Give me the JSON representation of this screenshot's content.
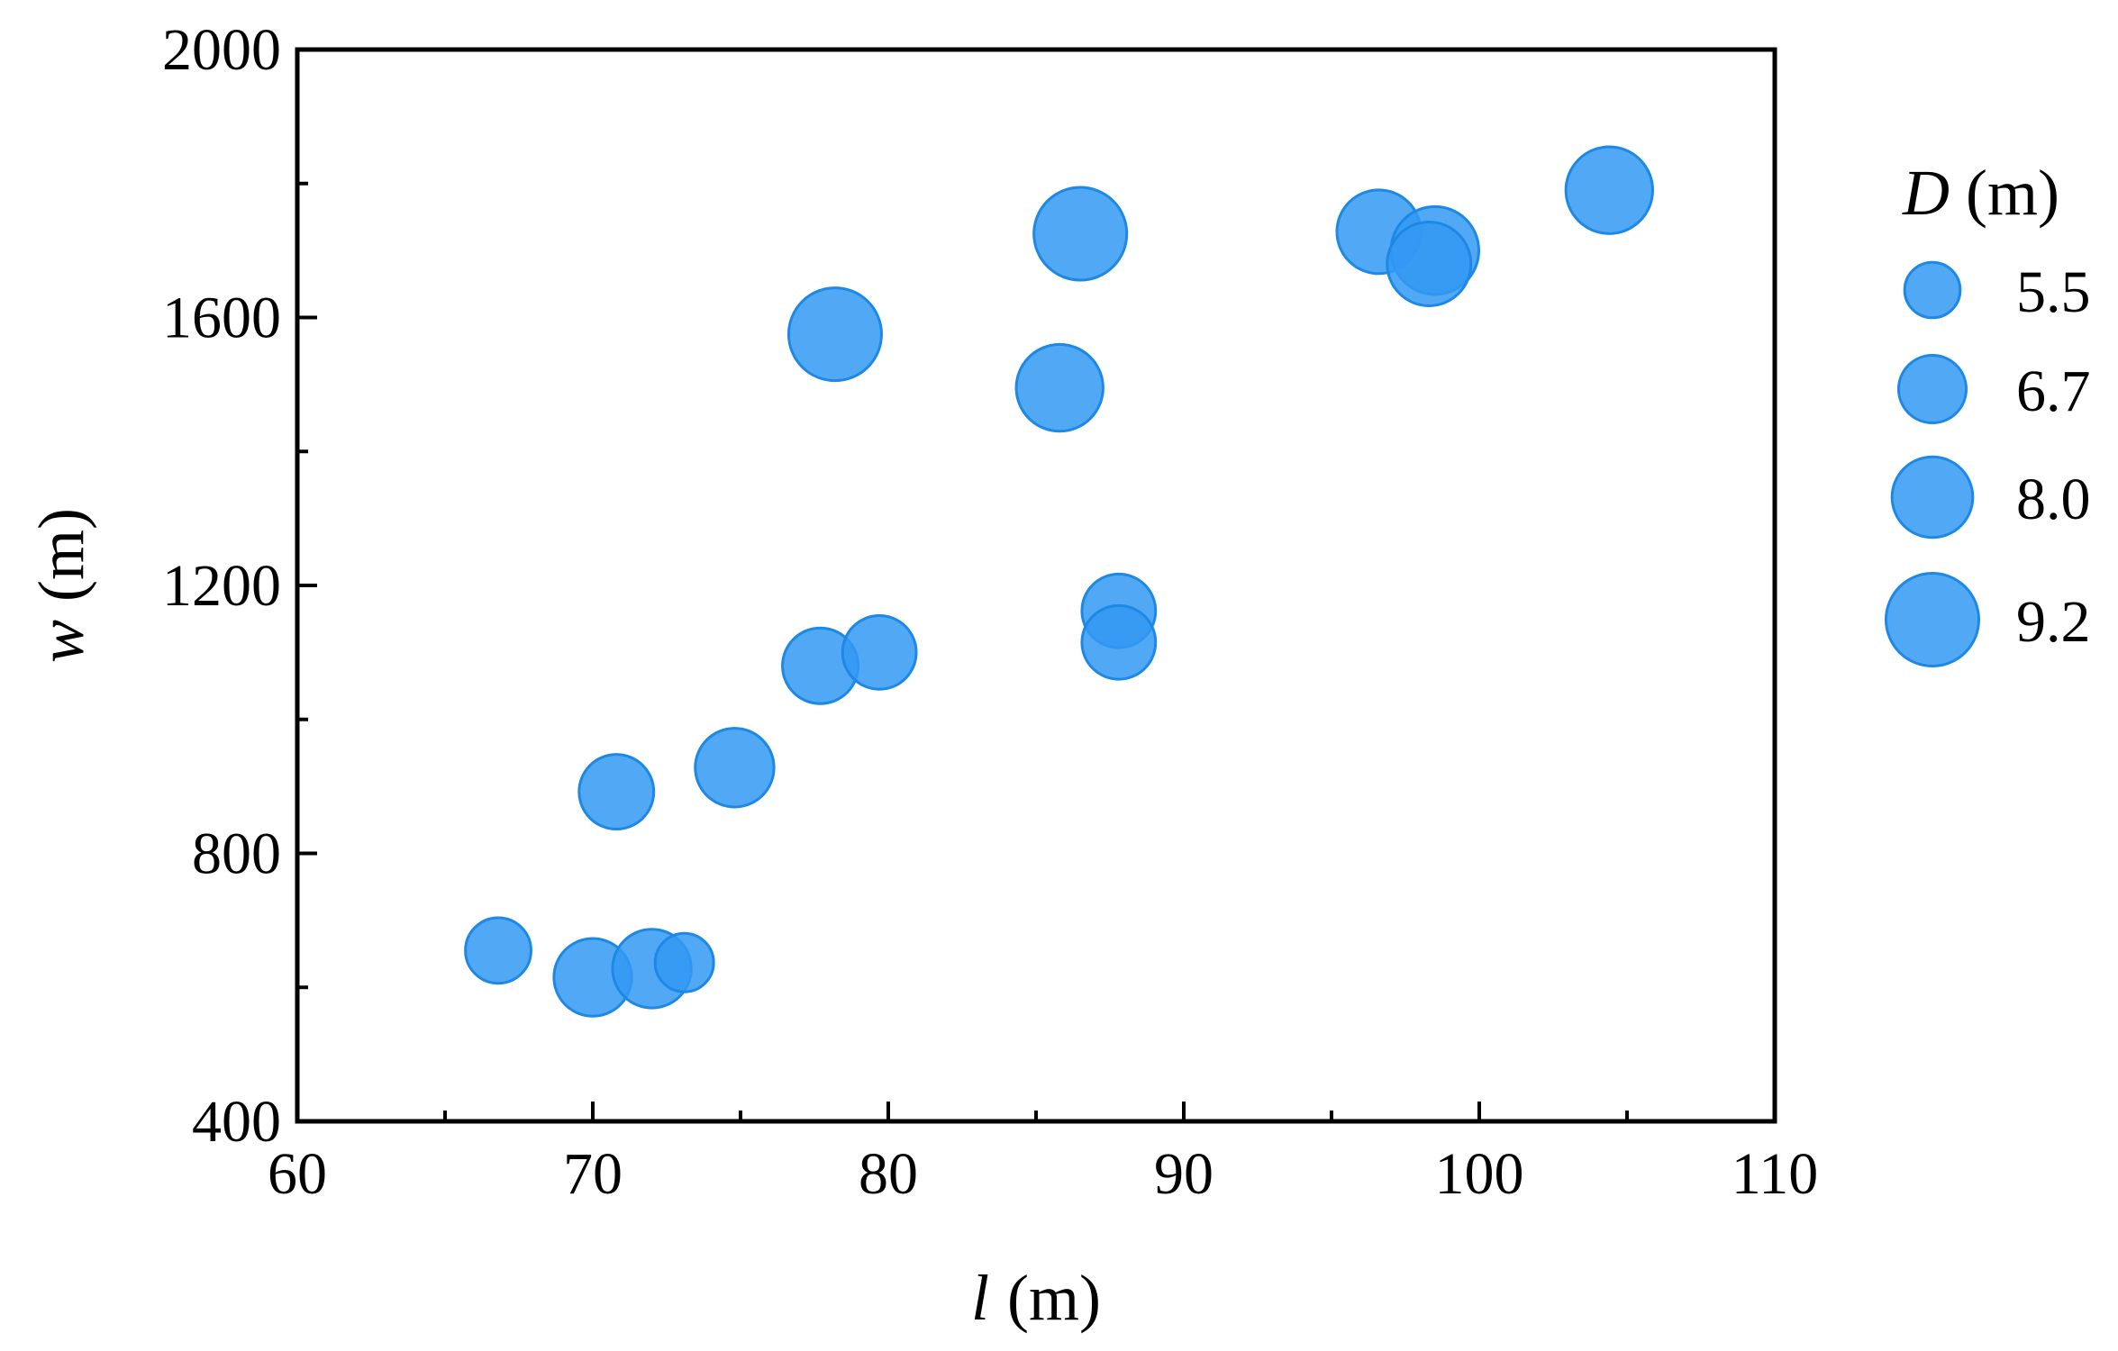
{
  "chart_data": {
    "type": "scatter",
    "title": "",
    "xlabel": {
      "symbol": "l",
      "unit": "(m)"
    },
    "ylabel": {
      "symbol": "w",
      "unit": "(m)"
    },
    "xlim": [
      60,
      110
    ],
    "ylim": [
      400,
      2000
    ],
    "xticks": [
      60,
      70,
      80,
      90,
      100,
      110
    ],
    "xticks_minor": [
      65,
      75,
      85,
      95,
      105
    ],
    "yticks": [
      400,
      800,
      1200,
      1600,
      2000
    ],
    "yticks_minor": [
      600,
      1000,
      1400,
      1800
    ],
    "grid": false,
    "marker_color": "#3399f3",
    "marker_edge_color": "#1e88e5",
    "size_variable": {
      "symbol": "D",
      "unit": "(m)"
    },
    "legend": {
      "placement": "right",
      "entries": [
        {
          "label": "5.5",
          "size": 5.5
        },
        {
          "label": "6.7",
          "size": 6.7
        },
        {
          "label": "8.0",
          "size": 8.0
        },
        {
          "label": "9.2",
          "size": 9.2
        }
      ]
    },
    "points": [
      {
        "x": 66.8,
        "y": 655,
        "size": 6.5
      },
      {
        "x": 70.0,
        "y": 615,
        "size": 7.7
      },
      {
        "x": 72.0,
        "y": 628,
        "size": 7.8
      },
      {
        "x": 73.1,
        "y": 637,
        "size": 5.8
      },
      {
        "x": 70.8,
        "y": 892,
        "size": 7.4
      },
      {
        "x": 74.8,
        "y": 928,
        "size": 7.8
      },
      {
        "x": 77.7,
        "y": 1080,
        "size": 7.5
      },
      {
        "x": 79.7,
        "y": 1100,
        "size": 7.3
      },
      {
        "x": 78.2,
        "y": 1575,
        "size": 9.2
      },
      {
        "x": 85.8,
        "y": 1495,
        "size": 8.6
      },
      {
        "x": 86.5,
        "y": 1725,
        "size": 9.2
      },
      {
        "x": 87.8,
        "y": 1162,
        "size": 7.3
      },
      {
        "x": 87.8,
        "y": 1115,
        "size": 7.3
      },
      {
        "x": 96.6,
        "y": 1728,
        "size": 8.3
      },
      {
        "x": 98.5,
        "y": 1700,
        "size": 8.7
      },
      {
        "x": 98.3,
        "y": 1680,
        "size": 8.3
      },
      {
        "x": 104.4,
        "y": 1790,
        "size": 8.6
      }
    ]
  }
}
